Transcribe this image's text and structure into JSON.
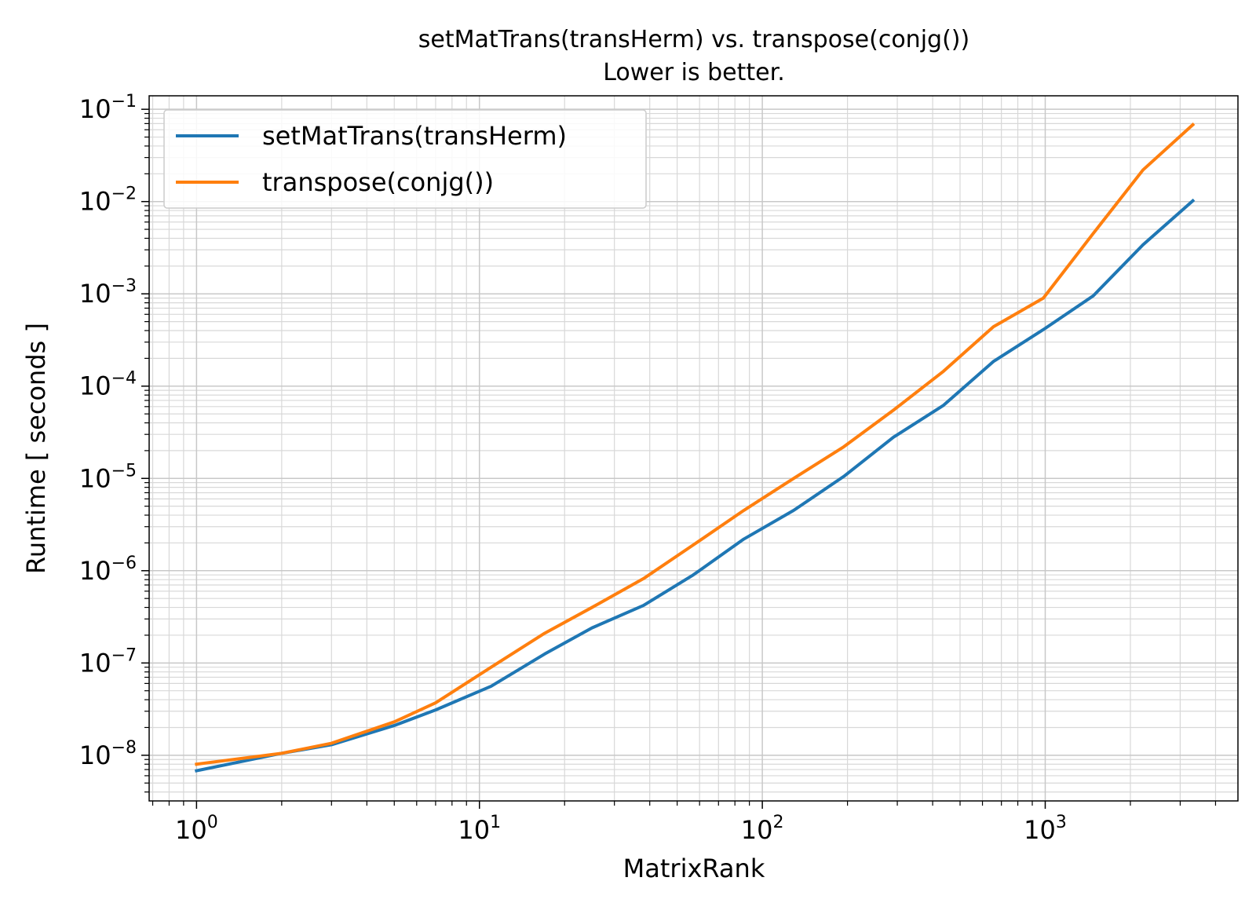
{
  "chart_data": {
    "type": "line",
    "title": "setMatTrans(transHerm) vs. transpose(conjg())",
    "subtitle": "Lower is better.",
    "xlabel": "MatrixRank",
    "ylabel": "Runtime [ seconds ]",
    "xscale": "log",
    "yscale": "log",
    "xlim": [
      0.68,
      4800
    ],
    "ylim": [
      3.2e-09,
      0.14
    ],
    "grid": true,
    "grid_minor": true,
    "legend_position": "top-left",
    "x_ticks": [
      {
        "value": 1,
        "base": "10",
        "exp": "0"
      },
      {
        "value": 10,
        "base": "10",
        "exp": "1"
      },
      {
        "value": 100,
        "base": "10",
        "exp": "2"
      },
      {
        "value": 1000,
        "base": "10",
        "exp": "3"
      }
    ],
    "y_ticks": [
      {
        "value": 1e-08,
        "base": "10",
        "exp": "−8"
      },
      {
        "value": 1e-07,
        "base": "10",
        "exp": "−7"
      },
      {
        "value": 1e-06,
        "base": "10",
        "exp": "−6"
      },
      {
        "value": 1e-05,
        "base": "10",
        "exp": "−5"
      },
      {
        "value": 0.0001,
        "base": "10",
        "exp": "−4"
      },
      {
        "value": 0.001,
        "base": "10",
        "exp": "−3"
      },
      {
        "value": 0.01,
        "base": "10",
        "exp": "−2"
      },
      {
        "value": 0.1,
        "base": "10",
        "exp": "−1"
      }
    ],
    "series": [
      {
        "name": "setMatTrans(transHerm)",
        "color": "#1f77b4",
        "x": [
          1,
          2,
          3,
          5,
          7,
          11,
          17,
          25,
          38,
          57,
          86,
          129,
          194,
          291,
          437,
          656,
          985,
          1477,
          2216,
          3325
        ],
        "y": [
          6.8e-09,
          1.05e-08,
          1.3e-08,
          2.1e-08,
          3.1e-08,
          5.6e-08,
          1.25e-07,
          2.4e-07,
          4.2e-07,
          9e-07,
          2.2e-06,
          4.5e-06,
          1.05e-05,
          2.8e-05,
          6.2e-05,
          0.000185,
          0.00041,
          0.00095,
          0.0034,
          0.0102
        ]
      },
      {
        "name": "transpose(conjg())",
        "color": "#ff7f0e",
        "x": [
          1,
          2,
          3,
          5,
          7,
          11,
          17,
          25,
          38,
          57,
          86,
          129,
          194,
          291,
          437,
          656,
          985,
          1477,
          2216,
          3325
        ],
        "y": [
          8e-09,
          1.05e-08,
          1.35e-08,
          2.3e-08,
          3.7e-08,
          9e-08,
          2.1e-07,
          4e-07,
          8.2e-07,
          1.9e-06,
          4.5e-06,
          1e-05,
          2.2e-05,
          5.5e-05,
          0.000145,
          0.00044,
          0.0009,
          0.0045,
          0.022,
          0.068
        ]
      }
    ]
  }
}
